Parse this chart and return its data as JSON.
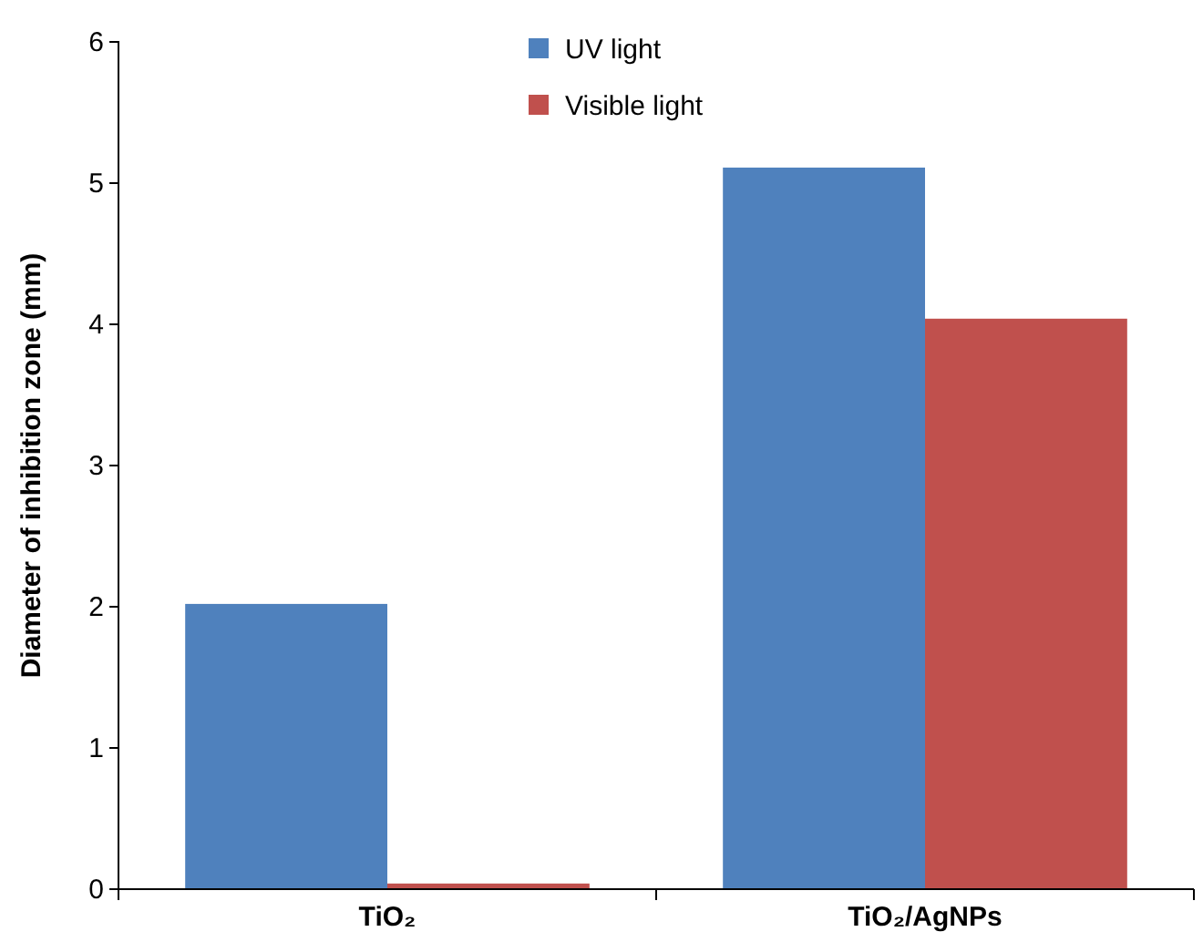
{
  "chart_data": {
    "type": "bar",
    "ylabel": "Diameter of inhibition zone (mm)",
    "categories": [
      "TiO₂",
      "TiO₂/AgNPs"
    ],
    "series": [
      {
        "name": "UV light",
        "color": "#4f81bd",
        "values": [
          2.02,
          5.11
        ]
      },
      {
        "name": "Visible light",
        "color": "#c0504d",
        "values": [
          0.04,
          4.04
        ]
      }
    ],
    "ylim": [
      0,
      6
    ],
    "yticks": [
      0,
      1,
      2,
      3,
      4,
      5,
      6
    ],
    "grid": false,
    "legend": "top"
  }
}
